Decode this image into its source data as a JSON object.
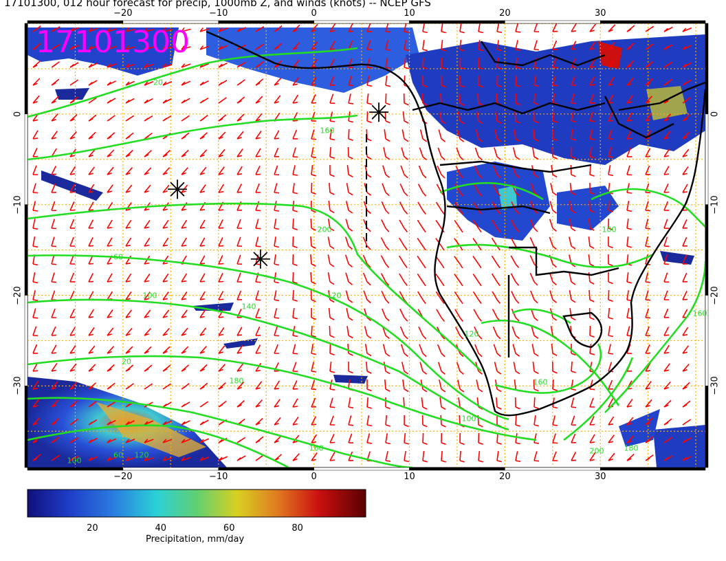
{
  "header": {
    "title": "17101300, 012 hour forecast for precip, 1000mb Z, and winds (knots) -- NCEP GFS"
  },
  "stamp": {
    "label": "17101300",
    "color": "#ff00ff"
  },
  "axes": {
    "lon_ticks": [
      "−20",
      "−10",
      "0",
      "10",
      "20",
      "30"
    ],
    "lat_ticks": [
      "0",
      "−10",
      "−20",
      "−30"
    ],
    "lon_values": [
      -20,
      -10,
      0,
      10,
      20,
      30
    ],
    "lat_values": [
      0,
      -10,
      -20,
      -30
    ],
    "lon_range": [
      -30,
      41
    ],
    "lat_range": [
      -39,
      10
    ],
    "grid": true,
    "grid_color": "#ffb000"
  },
  "colorbar": {
    "label": "Precipitation, mm/day",
    "ticks": [
      "20",
      "40",
      "60",
      "80"
    ],
    "tick_values": [
      20,
      40,
      60,
      80
    ],
    "range": [
      1,
      100
    ]
  },
  "contour_labels": [
    "20",
    "60",
    "100",
    "120",
    "140",
    "160",
    "180",
    "200"
  ],
  "colors": {
    "contour": "#22dd22",
    "wind_barb": "#ff0000",
    "coastline": "#000000",
    "precip_low": "#1a2a9c"
  },
  "markers": [
    {
      "name": "star-marker-1",
      "lon": 6.8,
      "lat": 0.2
    },
    {
      "name": "star-marker-2",
      "lon": -14.3,
      "lat": -8.3
    },
    {
      "name": "star-marker-3",
      "lon": -5.6,
      "lat": -16.0
    }
  ]
}
